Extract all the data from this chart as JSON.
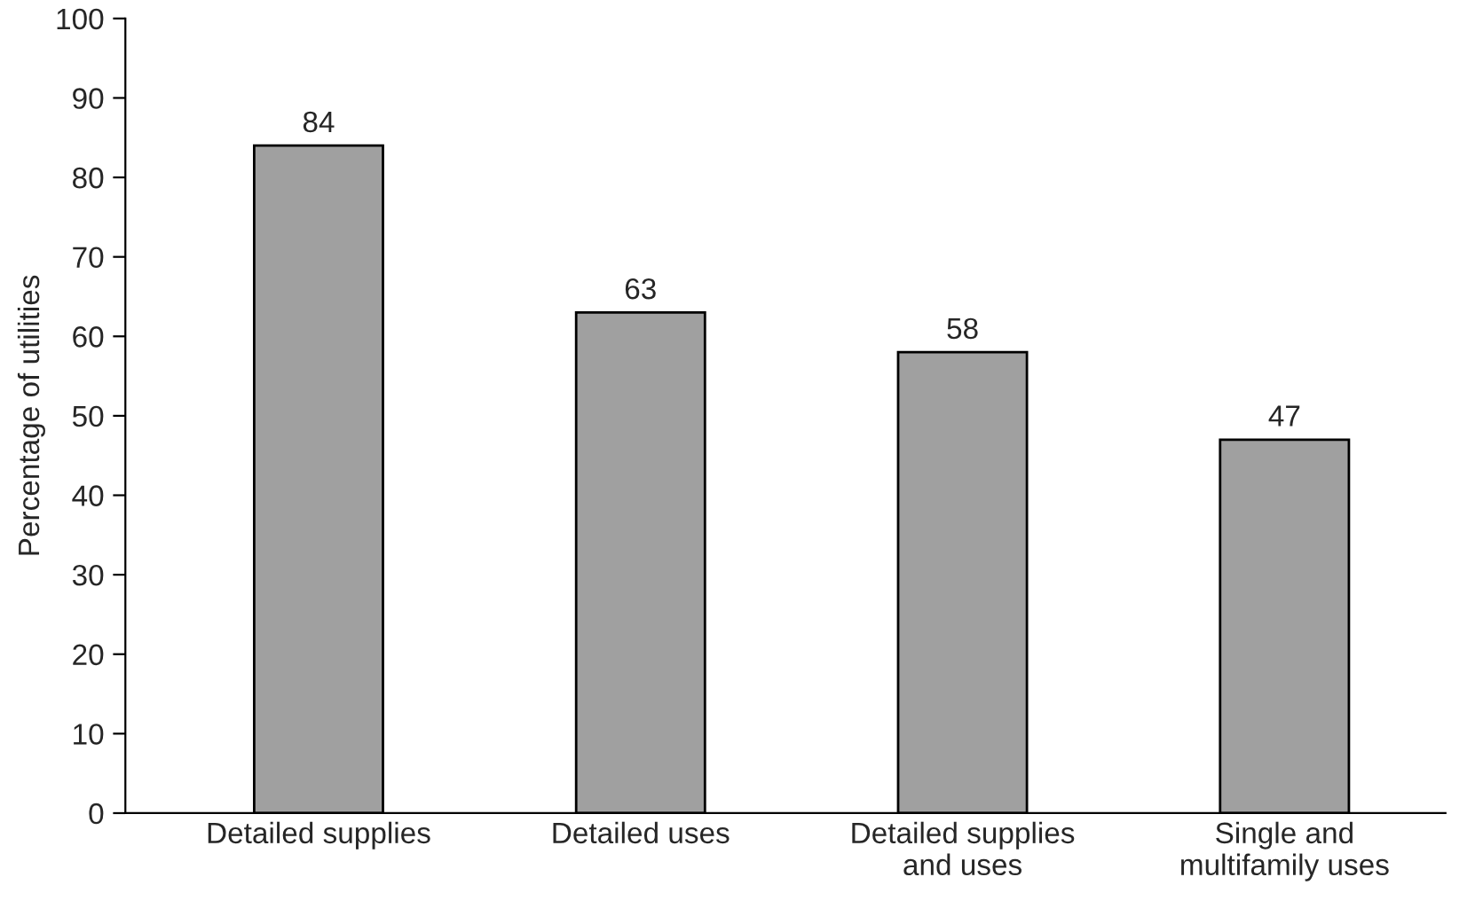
{
  "chart_data": {
    "type": "bar",
    "ylabel": "Percentage of utilities",
    "categories": [
      "Detailed supplies",
      "Detailed uses",
      "Detailed supplies\nand uses",
      "Single and\nmultifamily uses"
    ],
    "values": [
      84,
      63,
      58,
      47
    ],
    "color": "#a0a0a0",
    "ylim": [
      0,
      100
    ],
    "yticks": [
      0,
      10,
      20,
      30,
      40,
      50,
      60,
      70,
      80,
      90,
      100
    ],
    "data_labels": true,
    "grid": false,
    "legend": false
  }
}
